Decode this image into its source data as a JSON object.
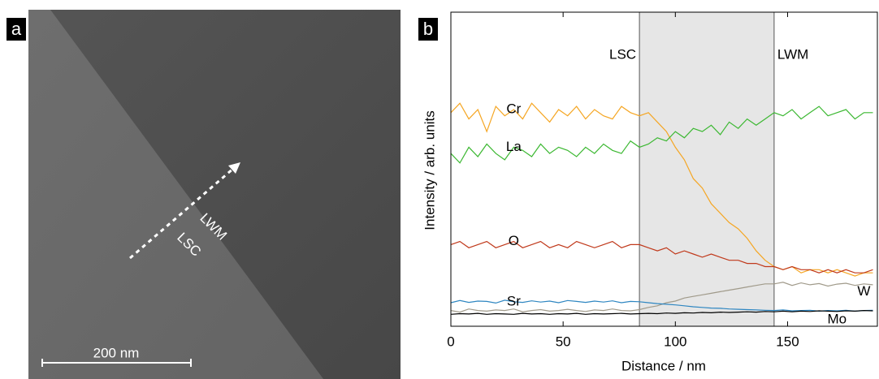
{
  "panels": [
    "a",
    "b"
  ],
  "image": {
    "labels": [
      "LWM",
      "LSC"
    ],
    "scale_bar": "200 nm"
  },
  "chart_data": {
    "type": "line",
    "xlabel": "Distance / nm",
    "ylabel": "Intensity / arb. units",
    "xlim": [
      0,
      190
    ],
    "ylim": [
      0,
      100
    ],
    "xticks": [
      0,
      50,
      100,
      150
    ],
    "boundaries": [
      84,
      144
    ],
    "annotations": [
      "LSC",
      "LWM"
    ],
    "x": [
      0,
      4,
      8,
      12,
      16,
      20,
      24,
      28,
      32,
      36,
      40,
      44,
      48,
      52,
      56,
      60,
      64,
      68,
      72,
      76,
      80,
      84,
      88,
      92,
      96,
      100,
      104,
      108,
      112,
      116,
      120,
      124,
      128,
      132,
      136,
      140,
      144,
      148,
      152,
      156,
      160,
      164,
      168,
      172,
      176,
      180,
      184,
      188
    ],
    "series": [
      {
        "name": "Cr",
        "color": "#f5a623",
        "values": [
          68,
          71,
          66,
          69,
          62,
          70,
          67,
          69,
          66,
          71,
          68,
          65,
          69,
          67,
          70,
          66,
          69,
          67,
          66,
          70,
          68,
          67,
          68,
          65,
          62,
          57,
          53,
          47,
          44,
          39,
          36,
          33,
          31,
          28,
          24,
          21,
          19,
          18,
          19,
          17,
          18,
          18,
          17,
          18,
          17,
          16,
          17,
          17
        ]
      },
      {
        "name": "La",
        "color": "#3cb832",
        "values": [
          55,
          52,
          57,
          54,
          58,
          55,
          53,
          57,
          56,
          54,
          58,
          55,
          57,
          56,
          54,
          57,
          55,
          58,
          56,
          55,
          59,
          57,
          58,
          60,
          59,
          62,
          60,
          63,
          62,
          64,
          61,
          65,
          63,
          66,
          64,
          66,
          68,
          67,
          69,
          66,
          68,
          70,
          67,
          68,
          69,
          66,
          68,
          68
        ]
      },
      {
        "name": "O",
        "color": "#c0391b",
        "values": [
          26,
          27,
          25,
          26,
          27,
          25,
          26,
          27,
          25,
          26,
          27,
          25,
          26,
          25,
          27,
          26,
          25,
          26,
          27,
          25,
          26,
          26,
          25,
          24,
          25,
          23,
          24,
          23,
          22,
          23,
          22,
          21,
          21,
          20,
          20,
          19,
          19,
          18,
          19,
          18,
          18,
          17,
          18,
          17,
          18,
          17,
          17,
          18
        ]
      },
      {
        "name": "W",
        "color": "#a09a8a",
        "values": [
          5,
          4.5,
          5.5,
          5,
          4.8,
          5.2,
          5,
          5.5,
          4.6,
          5,
          5.3,
          4.8,
          5,
          5.4,
          5,
          4.7,
          5.2,
          5,
          5.5,
          5,
          4.9,
          5.3,
          6,
          6.5,
          7.5,
          8,
          9,
          9.5,
          10,
          10.5,
          11,
          11.5,
          12,
          12.5,
          13,
          13.5,
          13.5,
          14,
          13,
          13.8,
          13.2,
          13.6,
          12.8,
          13.4,
          13.7,
          13,
          13.5,
          13.2
        ]
      },
      {
        "name": "Sr",
        "color": "#2e86c1",
        "values": [
          7.5,
          8.2,
          7.6,
          8,
          7.9,
          7.4,
          8.3,
          7.8,
          7.6,
          8.1,
          7.7,
          8,
          7.5,
          8.2,
          7.9,
          7.6,
          8,
          7.7,
          8.1,
          7.5,
          7.9,
          7.8,
          7.5,
          7.2,
          7,
          6.8,
          6.5,
          6.2,
          6,
          5.8,
          5.7,
          5.5,
          5.4,
          5.3,
          5.2,
          5.1,
          5,
          5.2,
          4.9,
          5,
          5.1,
          4.8,
          5,
          4.9,
          5.1,
          4.8,
          5,
          5.1
        ]
      },
      {
        "name": "Mo",
        "color": "#000000",
        "values": [
          3.8,
          4,
          3.9,
          4.1,
          3.8,
          4,
          3.9,
          3.8,
          4.1,
          3.9,
          4,
          3.8,
          4,
          3.9,
          4.1,
          3.8,
          4,
          3.9,
          4,
          4.1,
          3.9,
          4,
          4.1,
          4,
          4.2,
          4.1,
          4.3,
          4.2,
          4.4,
          4.3,
          4.5,
          4.4,
          4.5,
          4.6,
          4.5,
          4.7,
          4.6,
          4.8,
          4.6,
          4.8,
          4.7,
          4.9,
          4.8,
          4.7,
          4.9,
          4.8,
          5,
          4.9
        ]
      }
    ]
  }
}
